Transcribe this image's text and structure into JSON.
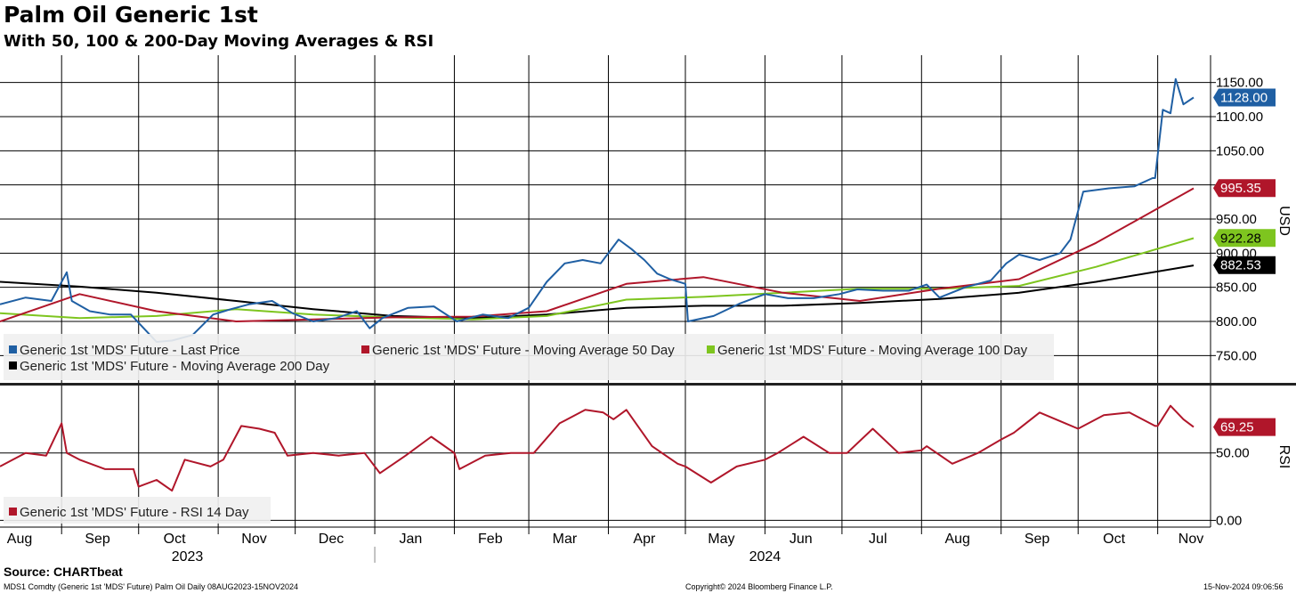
{
  "header": {
    "title": "Palm Oil Generic 1st",
    "subtitle": "With 50, 100 & 200-Day Moving Averages & RSI"
  },
  "footer": {
    "source": "Source: CHARTbeat",
    "left": "MDS1 Comdty (Generic 1st 'MDS' Future) Palm Oil  Daily 08AUG2023-15NOV2024",
    "center": "Copyright© 2024 Bloomberg Finance L.P.",
    "right": "15-Nov-2024 09:06:56"
  },
  "colors": {
    "last_price": "#1f5fa3",
    "ma50": "#b0162a",
    "ma100": "#7ec51f",
    "ma200": "#000000",
    "rsi": "#b0162a"
  },
  "chart_data": [
    {
      "type": "line",
      "title": "Palm Oil Generic 1st",
      "ylabel": "USD",
      "ylim": [
        710,
        1190
      ],
      "y_ticks": [
        "750.00",
        "800.00",
        "850.00",
        "900.00",
        "950.00",
        "1000.00",
        "1050.00",
        "1100.00",
        "1150.00"
      ],
      "grid": true,
      "legend_position": "bottom-left",
      "x_range": [
        "2023-08-08",
        "2024-11-15"
      ],
      "x_month_labels": [
        "Aug",
        "Sep",
        "Oct",
        "Nov",
        "Dec",
        "Jan",
        "Feb",
        "Mar",
        "Apr",
        "May",
        "Jun",
        "Jul",
        "Aug",
        "Sep",
        "Oct",
        "Nov"
      ],
      "x_years": [
        "2023",
        "2024"
      ],
      "series": [
        {
          "name": "Generic 1st 'MDS' Future - Last Price",
          "color_key": "last_price",
          "last_label": "1128.00",
          "x": [
            "2023-08-08",
            "2023-08-18",
            "2023-08-28",
            "2023-09-03",
            "2023-09-05",
            "2023-09-12",
            "2023-09-20",
            "2023-09-28",
            "2023-10-03",
            "2023-10-08",
            "2023-10-14",
            "2023-10-22",
            "2023-10-30",
            "2023-11-06",
            "2023-11-13",
            "2023-11-22",
            "2023-11-30",
            "2023-12-08",
            "2023-12-17",
            "2023-12-25",
            "2023-12-30",
            "2024-01-04",
            "2024-01-14",
            "2024-01-24",
            "2024-02-02",
            "2024-02-12",
            "2024-02-22",
            "2024-03-01",
            "2024-03-08",
            "2024-03-15",
            "2024-03-22",
            "2024-03-29",
            "2024-04-05",
            "2024-04-10",
            "2024-04-15",
            "2024-04-20",
            "2024-04-25",
            "2024-05-01",
            "2024-05-02",
            "2024-05-12",
            "2024-05-22",
            "2024-06-01",
            "2024-06-10",
            "2024-06-20",
            "2024-06-30",
            "2024-07-07",
            "2024-07-17",
            "2024-07-27",
            "2024-08-03",
            "2024-08-08",
            "2024-08-18",
            "2024-08-28",
            "2024-09-03",
            "2024-09-08",
            "2024-09-16",
            "2024-09-24",
            "2024-09-28",
            "2024-10-03",
            "2024-10-13",
            "2024-10-23",
            "2024-10-30",
            "2024-10-31",
            "2024-11-03",
            "2024-11-06",
            "2024-11-08",
            "2024-11-11",
            "2024-11-15"
          ],
          "y": [
            825,
            835,
            830,
            872,
            830,
            815,
            810,
            810,
            790,
            770,
            772,
            780,
            810,
            818,
            825,
            830,
            812,
            800,
            805,
            815,
            790,
            805,
            820,
            822,
            800,
            810,
            805,
            820,
            858,
            885,
            890,
            885,
            920,
            906,
            890,
            870,
            862,
            855,
            800,
            808,
            826,
            840,
            834,
            834,
            840,
            847,
            845,
            845,
            854,
            835,
            850,
            860,
            885,
            898,
            890,
            900,
            920,
            990,
            995,
            998,
            1010,
            1010,
            1110,
            1105,
            1155,
            1118,
            1128
          ]
        },
        {
          "name": "Generic 1st 'MDS' Future - Moving Average 50 Day",
          "color_key": "ma50",
          "last_label": "995.35",
          "x": [
            "2023-08-08",
            "2023-09-08",
            "2023-10-08",
            "2023-11-08",
            "2023-12-08",
            "2024-01-08",
            "2024-02-08",
            "2024-03-08",
            "2024-04-08",
            "2024-05-08",
            "2024-06-08",
            "2024-07-08",
            "2024-08-08",
            "2024-09-08",
            "2024-10-08",
            "2024-11-15"
          ],
          "y": [
            800,
            840,
            815,
            800,
            803,
            806,
            807,
            815,
            855,
            865,
            842,
            830,
            848,
            862,
            915,
            995
          ]
        },
        {
          "name": "Generic 1st 'MDS' Future - Moving Average 100 Day",
          "color_key": "ma100",
          "last_label": "922.28",
          "x": [
            "2023-08-08",
            "2023-09-08",
            "2023-10-08",
            "2023-11-08",
            "2023-12-08",
            "2024-01-08",
            "2024-02-08",
            "2024-03-08",
            "2024-04-08",
            "2024-05-08",
            "2024-06-08",
            "2024-07-08",
            "2024-08-08",
            "2024-09-08",
            "2024-10-08",
            "2024-11-15"
          ],
          "y": [
            812,
            805,
            808,
            818,
            810,
            806,
            803,
            808,
            832,
            836,
            842,
            848,
            848,
            852,
            880,
            922
          ]
        },
        {
          "name": "Generic 1st 'MDS' Future - Moving Average 200 Day",
          "color_key": "ma200",
          "last_label": "882.53",
          "x": [
            "2023-08-08",
            "2023-09-08",
            "2023-10-08",
            "2023-11-08",
            "2023-12-08",
            "2024-01-08",
            "2024-02-08",
            "2024-03-08",
            "2024-04-08",
            "2024-05-08",
            "2024-06-08",
            "2024-07-08",
            "2024-08-08",
            "2024-09-08",
            "2024-10-08",
            "2024-11-15"
          ],
          "y": [
            858,
            851,
            842,
            830,
            818,
            808,
            805,
            810,
            820,
            823,
            823,
            827,
            833,
            842,
            858,
            882
          ]
        }
      ]
    },
    {
      "type": "line",
      "ylabel": "RSI",
      "ylim": [
        -5,
        100
      ],
      "y_ticks": [
        "0.00",
        "50.00"
      ],
      "grid": true,
      "legend_position": "bottom-left",
      "series": [
        {
          "name": "Generic 1st 'MDS' Future - RSI 14 Day",
          "color_key": "rsi",
          "last_label": "69.25",
          "x": [
            "2023-08-08",
            "2023-08-13",
            "2023-08-18",
            "2023-08-26",
            "2023-09-01",
            "2023-09-03",
            "2023-09-08",
            "2023-09-18",
            "2023-09-29",
            "2023-10-01",
            "2023-10-08",
            "2023-10-14",
            "2023-10-19",
            "2023-10-29",
            "2023-11-03",
            "2023-11-10",
            "2023-11-17",
            "2023-11-23",
            "2023-11-28",
            "2023-12-08",
            "2023-12-18",
            "2023-12-28",
            "2024-01-03",
            "2024-01-13",
            "2024-01-23",
            "2024-02-01",
            "2024-02-03",
            "2024-02-13",
            "2024-02-23",
            "2024-03-03",
            "2024-03-13",
            "2024-03-23",
            "2024-03-30",
            "2024-04-03",
            "2024-04-08",
            "2024-04-18",
            "2024-04-28",
            "2024-05-01",
            "2024-05-11",
            "2024-05-21",
            "2024-06-01",
            "2024-06-06",
            "2024-06-16",
            "2024-06-26",
            "2024-07-03",
            "2024-07-13",
            "2024-07-23",
            "2024-08-01",
            "2024-08-03",
            "2024-08-13",
            "2024-08-23",
            "2024-09-01",
            "2024-09-06",
            "2024-09-16",
            "2024-09-26",
            "2024-10-01",
            "2024-10-11",
            "2024-10-21",
            "2024-10-31",
            "2024-11-01",
            "2024-11-06",
            "2024-11-11",
            "2024-11-15"
          ],
          "y": [
            40,
            45,
            50,
            48,
            72,
            50,
            45,
            38,
            38,
            25,
            30,
            22,
            45,
            40,
            45,
            70,
            68,
            65,
            48,
            50,
            48,
            50,
            35,
            48,
            62,
            50,
            38,
            48,
            50,
            50,
            72,
            82,
            80,
            75,
            82,
            55,
            42,
            40,
            28,
            40,
            45,
            50,
            62,
            50,
            50,
            68,
            50,
            52,
            55,
            42,
            50,
            60,
            65,
            80,
            72,
            68,
            78,
            80,
            70,
            70,
            85,
            75,
            69.25
          ]
        }
      ]
    }
  ]
}
